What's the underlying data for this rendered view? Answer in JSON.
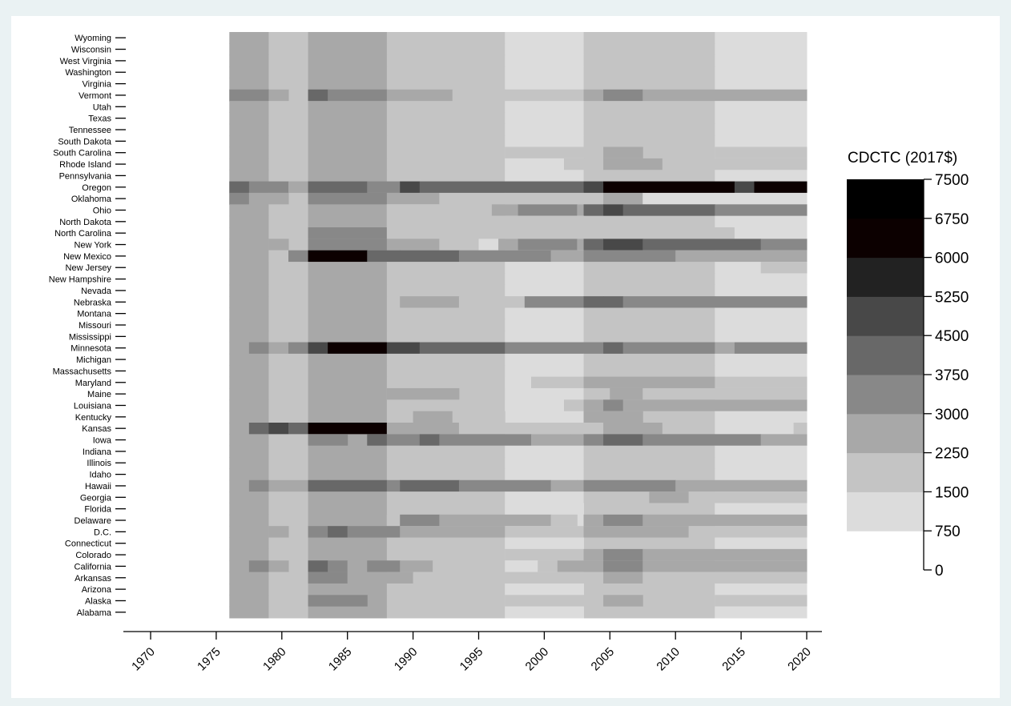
{
  "chart_data": {
    "type": "heatmap",
    "title": "",
    "xlabel": "",
    "ylabel": "",
    "legend_title": "CDCTC (2017$)",
    "legend_position": "right",
    "x_ticks": [
      "1970",
      "1975",
      "1980",
      "1985",
      "1990",
      "1995",
      "2000",
      "2005",
      "2010",
      "2015",
      "2020"
    ],
    "xlim": [
      1970,
      2020
    ],
    "data_years": [
      1976,
      2020
    ],
    "color_scale": {
      "breaks": [
        0,
        750,
        1500,
        2250,
        3000,
        3750,
        4500,
        5250,
        6000,
        6750,
        7500
      ],
      "labels": [
        "0",
        "750",
        "1500",
        "2250",
        "3000",
        "3750",
        "4500",
        "5250",
        "6000",
        "6750",
        "7500"
      ],
      "colors": [
        "#f1f1f1",
        "#dcdcdc",
        "#c4c4c4",
        "#a8a8a8",
        "#888888",
        "#686868",
        "#484848",
        "#222222",
        "#0c0000"
      ]
    },
    "states": [
      "Wyoming",
      "Wisconsin",
      "West Virginia",
      "Washington",
      "Virginia",
      "Vermont",
      "Utah",
      "Texas",
      "Tennessee",
      "South Dakota",
      "South Carolina",
      "Rhode Island",
      "Pennsylvania",
      "Oregon",
      "Oklahoma",
      "Ohio",
      "North Dakota",
      "North Carolina",
      "New York",
      "New Mexico",
      "New Jersey",
      "New Hampshire",
      "Nevada",
      "Nebraska",
      "Montana",
      "Missouri",
      "Mississippi",
      "Minnesota",
      "Michigan",
      "Massachusetts",
      "Maryland",
      "Maine",
      "Louisiana",
      "Kentucky",
      "Kansas",
      "Iowa",
      "Indiana",
      "Illinois",
      "Idaho",
      "Hawaii",
      "Georgia",
      "Florida",
      "Delaware",
      "D.C.",
      "Connecticut",
      "Colorado",
      "California",
      "Arkansas",
      "Arizona",
      "Alaska",
      "Alabama"
    ],
    "base_bands": [
      {
        "from": 1976,
        "to": 1979,
        "value": 2600
      },
      {
        "from": 1979,
        "to": 1982,
        "value": 2000
      },
      {
        "from": 1982,
        "to": 1988,
        "value": 2600
      },
      {
        "from": 1988,
        "to": 1997,
        "value": 2000
      },
      {
        "from": 1997,
        "to": 2003,
        "value": 1300
      },
      {
        "from": 2003,
        "to": 2013,
        "value": 2000
      },
      {
        "from": 2013,
        "to": 2020,
        "value": 1300
      }
    ],
    "state_overrides": {
      "Vermont": [
        [
          1976,
          1979,
          3200
        ],
        [
          1979,
          1980.5,
          2700
        ],
        [
          1982,
          1983.5,
          4300
        ],
        [
          1983.5,
          1988,
          3300
        ],
        [
          1988,
          1993,
          2500
        ],
        [
          1993,
          1997,
          2000
        ],
        [
          1997,
          2003,
          1900
        ],
        [
          2003,
          2004.5,
          2600
        ],
        [
          2004.5,
          2007.5,
          3500
        ],
        [
          2007.5,
          2020,
          2600
        ]
      ],
      "Rhode Island": [
        [
          1997,
          2001.5,
          1100
        ],
        [
          2001.5,
          2003,
          1900
        ],
        [
          2004.5,
          2006,
          2600
        ],
        [
          2006,
          2009,
          2300
        ],
        [
          2009,
          2013,
          1900
        ],
        [
          2013,
          2020,
          1900
        ]
      ],
      "South Carolina": [
        [
          1997,
          2003,
          1900
        ],
        [
          2004.5,
          2007.5,
          2600
        ],
        [
          2013,
          2020,
          1900
        ]
      ],
      "Pennsylvania": [
        [
          1997,
          2001.5,
          1100
        ]
      ],
      "Oregon": [
        [
          1976,
          1977.5,
          4300
        ],
        [
          1977.5,
          1980.5,
          3300
        ],
        [
          1980.5,
          1982,
          2700
        ],
        [
          1982,
          1986.5,
          4300
        ],
        [
          1986.5,
          1989,
          3300
        ],
        [
          1989,
          1990.5,
          4700
        ],
        [
          1990.5,
          2003,
          4100
        ],
        [
          2003,
          2004.5,
          4700
        ],
        [
          2004.5,
          2014.5,
          6200
        ],
        [
          2014.5,
          2016,
          4700
        ],
        [
          2016,
          2020,
          6200
        ]
      ],
      "Oklahoma": [
        [
          1976,
          1977.5,
          3300
        ],
        [
          1977.5,
          1980.5,
          2500
        ],
        [
          1982,
          1988,
          3300
        ],
        [
          1988,
          1992,
          2600
        ],
        [
          1992,
          2003,
          1900
        ],
        [
          2003,
          2004.5,
          1900
        ],
        [
          2004.5,
          2007.5,
          2600
        ],
        [
          2007.5,
          2020,
          1300
        ]
      ],
      "Ohio": [
        [
          1988,
          1996,
          2000
        ],
        [
          1996,
          1998,
          2600
        ],
        [
          1998,
          2002.5,
          3300
        ],
        [
          2002.5,
          2003,
          2600
        ],
        [
          2003,
          2004.5,
          4100
        ],
        [
          2004.5,
          2006,
          4700
        ],
        [
          2006,
          2013,
          4100
        ],
        [
          2013,
          2020,
          3500
        ]
      ],
      "North Dakota": [
        [
          1988,
          1997,
          1900
        ],
        [
          1997,
          2003,
          1700
        ]
      ],
      "North Carolina": [
        [
          1982,
          1988,
          3500
        ],
        [
          1988,
          1997,
          2000
        ],
        [
          1997,
          1999.5,
          2000
        ],
        [
          1999.5,
          2001,
          1900
        ],
        [
          2001,
          2003,
          1900
        ],
        [
          2003,
          2014.5,
          2000
        ],
        [
          2014.5,
          2020,
          1300
        ]
      ],
      "New York": [
        [
          1979,
          1980.5,
          2600
        ],
        [
          1982,
          1988,
          3500
        ],
        [
          1988,
          1992,
          2600
        ],
        [
          1992,
          1995,
          2000
        ],
        [
          1995,
          1996.5,
          1300
        ],
        [
          1996.5,
          1998,
          2600
        ],
        [
          1998,
          2002.5,
          3300
        ],
        [
          2002.5,
          2003,
          2600
        ],
        [
          2003,
          2004.5,
          3800
        ],
        [
          2004.5,
          2007.5,
          4500
        ],
        [
          2007.5,
          2016.5,
          3800
        ],
        [
          2016.5,
          2020,
          3500
        ]
      ],
      "New Mexico": [
        [
          1979,
          1980.5,
          2000
        ],
        [
          1980.5,
          1982,
          3300
        ],
        [
          1982,
          1986.5,
          6200
        ],
        [
          1986.5,
          1989,
          4300
        ],
        [
          1989,
          1993.5,
          3800
        ],
        [
          1993.5,
          2000.5,
          3300
        ],
        [
          2000.5,
          2002.5,
          2600
        ],
        [
          2002.5,
          2003,
          2600
        ],
        [
          2003,
          2010,
          3300
        ],
        [
          2010,
          2016.5,
          2600
        ],
        [
          2016.5,
          2020,
          2400
        ]
      ],
      "New Jersey": [
        [
          2016.5,
          2020,
          2000
        ]
      ],
      "Nebraska": [
        [
          1989,
          1993.5,
          2600
        ],
        [
          1993.5,
          1997,
          2000
        ],
        [
          1997,
          1998.5,
          1900
        ],
        [
          1998.5,
          2003,
          3300
        ],
        [
          2003,
          2004.5,
          3800
        ],
        [
          2004.5,
          2006,
          4300
        ],
        [
          2006,
          2013,
          3600
        ],
        [
          2013,
          2020,
          3500
        ]
      ],
      "Minnesota": [
        [
          1977.5,
          1979,
          3300
        ],
        [
          1979,
          1980.5,
          2600
        ],
        [
          1980.5,
          1982,
          3300
        ],
        [
          1982,
          1983.5,
          4500
        ],
        [
          1983.5,
          1985,
          7200
        ],
        [
          1985,
          1988,
          6000
        ],
        [
          1988,
          1990.5,
          4600
        ],
        [
          1990.5,
          1997,
          4000
        ],
        [
          1997,
          2003,
          3500
        ],
        [
          2003,
          2004.5,
          3500
        ],
        [
          2004.5,
          2006,
          4100
        ],
        [
          2006,
          2013,
          3300
        ],
        [
          2013,
          2014.5,
          2600
        ],
        [
          2014.5,
          2020,
          3400
        ]
      ],
      "Maryland": [
        [
          1997,
          1999,
          1300
        ],
        [
          1999,
          2003,
          1900
        ],
        [
          2003,
          2013,
          2600
        ],
        [
          2013,
          2020,
          1900
        ]
      ],
      "Maine": [
        [
          1988,
          1993.5,
          2600
        ],
        [
          2003,
          2005,
          2000
        ],
        [
          2005,
          2007.5,
          2600
        ],
        [
          2007.5,
          2020,
          1900
        ]
      ],
      "Louisiana": [
        [
          1997,
          2001.5,
          1100
        ],
        [
          2001.5,
          2003,
          1500
        ],
        [
          2003,
          2004.5,
          2600
        ],
        [
          2004.5,
          2006,
          3300
        ],
        [
          2006,
          2020,
          2600
        ]
      ],
      "Kentucky": [
        [
          1990,
          1993,
          2600
        ],
        [
          1993,
          1997,
          2000
        ],
        [
          2003,
          2007.5,
          2600
        ]
      ],
      "Kansas": [
        [
          1977.5,
          1979,
          4300
        ],
        [
          1979,
          1980.5,
          5000
        ],
        [
          1980.5,
          1982,
          4100
        ],
        [
          1982,
          1985,
          7200
        ],
        [
          1985,
          1988,
          6000
        ],
        [
          1988,
          1993.5,
          2600
        ],
        [
          1993.5,
          1997,
          2000
        ],
        [
          1997,
          2003,
          1900
        ],
        [
          2003,
          2004.5,
          1900
        ],
        [
          2004.5,
          2007.5,
          2600
        ],
        [
          2007.5,
          2009,
          2600
        ],
        [
          2009,
          2013,
          1900
        ],
        [
          2013,
          2019,
          1100
        ],
        [
          2019,
          2020,
          1900
        ]
      ],
      "Iowa": [
        [
          1982,
          1985,
          3500
        ],
        [
          1986.5,
          1988,
          3900
        ],
        [
          1988,
          1990.5,
          3300
        ],
        [
          1990.5,
          1992,
          4100
        ],
        [
          1992,
          1999,
          3300
        ],
        [
          1999,
          2002,
          2600
        ],
        [
          2002,
          2003,
          2600
        ],
        [
          2003,
          2004.5,
          3500
        ],
        [
          2004.5,
          2007.5,
          4100
        ],
        [
          2007.5,
          2016.5,
          3300
        ],
        [
          2016.5,
          2020,
          2600
        ]
      ],
      "Hawaii": [
        [
          1977.5,
          1979,
          3300
        ],
        [
          1979,
          1982,
          2600
        ],
        [
          1982,
          1983.5,
          4400
        ],
        [
          1983.5,
          1988,
          3900
        ],
        [
          1988,
          1989,
          3500
        ],
        [
          1989,
          1993.5,
          3900
        ],
        [
          1993.5,
          2000.5,
          3300
        ],
        [
          2000.5,
          2002.5,
          2600
        ],
        [
          2002.5,
          2003,
          2600
        ],
        [
          2003,
          2010,
          3300
        ],
        [
          2010,
          2020,
          2600
        ]
      ],
      "Georgia": [
        [
          2008,
          2011,
          2600
        ],
        [
          2011,
          2020,
          1900
        ]
      ],
      "Florida": [
        [
          1997,
          2003,
          1300
        ],
        [
          2013,
          2020,
          1300
        ]
      ],
      "Delaware": [
        [
          1988,
          1989,
          2000
        ],
        [
          1989,
          1992,
          3300
        ],
        [
          1992,
          2000.5,
          2600
        ],
        [
          2000.5,
          2002.5,
          2000
        ],
        [
          2003,
          2004.5,
          2600
        ],
        [
          2004.5,
          2007.5,
          3400
        ],
        [
          2007.5,
          2020,
          2600
        ]
      ],
      "D.C.": [
        [
          1979,
          1980.5,
          2600
        ],
        [
          1982,
          1983.5,
          3300
        ],
        [
          1983.5,
          1985,
          4100
        ],
        [
          1985,
          1989,
          3500
        ],
        [
          1989,
          1997,
          2600
        ],
        [
          1997,
          2002.5,
          1900
        ],
        [
          2002.5,
          2003,
          2000
        ],
        [
          2003,
          2011,
          2600
        ],
        [
          2011,
          2020,
          1900
        ]
      ],
      "Connecticut": [
        [
          1997,
          2003,
          1300
        ],
        [
          2013,
          2020,
          1300
        ]
      ],
      "Colorado": [
        [
          1997,
          2003,
          2200
        ],
        [
          2003,
          2004.5,
          2600
        ],
        [
          2004.5,
          2007.5,
          3300
        ],
        [
          2007.5,
          2020,
          2600
        ]
      ],
      "California": [
        [
          1977.5,
          1979,
          3300
        ],
        [
          1979,
          1980.5,
          2600
        ],
        [
          1982,
          1983.5,
          4100
        ],
        [
          1983.5,
          1985,
          3300
        ],
        [
          1985,
          1986.5,
          2600
        ],
        [
          1986.5,
          1989,
          3300
        ],
        [
          1989,
          1991.5,
          2600
        ],
        [
          1991.5,
          1997,
          2000
        ],
        [
          1997,
          1999.5,
          1100
        ],
        [
          1999.5,
          2001,
          1900
        ],
        [
          2001,
          2003,
          2600
        ],
        [
          2003,
          2004.5,
          2600
        ],
        [
          2004.5,
          2007.5,
          3300
        ],
        [
          2007.5,
          2020,
          2600
        ]
      ],
      "Arkansas": [
        [
          1982,
          1985,
          3400
        ],
        [
          1985,
          1990,
          2600
        ],
        [
          1990,
          1997,
          2000
        ],
        [
          1997,
          2003,
          1900
        ],
        [
          2004.5,
          2007.5,
          2600
        ],
        [
          2007.5,
          2020,
          1900
        ]
      ],
      "Arizona": [
        [
          1997,
          2003,
          1300
        ],
        [
          2013,
          2020,
          1300
        ]
      ],
      "Alaska": [
        [
          1982,
          1986.5,
          3300
        ],
        [
          1997,
          2003,
          1900
        ],
        [
          2004.5,
          2007.5,
          2600
        ],
        [
          2013,
          2020,
          1900
        ]
      ],
      "Alabama": [
        [
          1997,
          2003,
          1300
        ],
        [
          2013,
          2020,
          1300
        ]
      ]
    }
  }
}
